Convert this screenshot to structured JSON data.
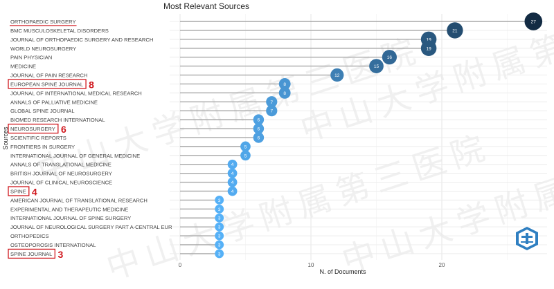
{
  "chart_data": {
    "type": "scatter",
    "subtype": "lollipop",
    "title": "Most Relevant Sources",
    "xlabel": "N. of Documents",
    "ylabel": "Sources",
    "xlim": [
      0,
      28
    ],
    "xticks": [
      0,
      10,
      20
    ],
    "grid": true,
    "color_low": "#56B1F7",
    "color_high": "#132B43",
    "categories": [
      "ORTHOPAEDIC SURGERY",
      "BMC MUSCULOSKELETAL DISORDERS",
      "JOURNAL OF ORTHOPAEDIC SURGERY AND RESEARCH",
      "WORLD NEUROSURGERY",
      "PAIN PHYSICIAN",
      "MEDICINE",
      "JOURNAL OF PAIN RESEARCH",
      "EUROPEAN SPINE JOURNAL",
      "JOURNAL OF INTERNATIONAL MEDICAL RESEARCH",
      "ANNALS OF PALLIATIVE MEDICINE",
      "GLOBAL SPINE JOURNAL",
      "BIOMED RESEARCH INTERNATIONAL",
      "NEUROSURGERY",
      "SCIENTIFIC REPORTS",
      "FRONTIERS IN SURGERY",
      "INTERNATIONAL JOURNAL OF GENERAL MEDICINE",
      "ANNALS OF TRANSLATIONAL MEDICINE",
      "BRITISH JOURNAL OF NEUROSURGERY",
      "JOURNAL OF CLINICAL NEUROSCIENCE",
      "SPINE",
      "AMERICAN JOURNAL OF TRANSLATIONAL RESEARCH",
      "EXPERIMENTAL AND THERAPEUTIC MEDICINE",
      "INTERNATIONAL JOURNAL OF SPINE SURGERY",
      "JOURNAL OF NEUROLOGICAL SURGERY PART A-CENTRAL EUR",
      "ORTHOPEDICS",
      "OSTEOPOROSIS INTERNATIONAL",
      "SPINE JOURNAL"
    ],
    "values": [
      27,
      21,
      19,
      19,
      16,
      15,
      12,
      8,
      8,
      7,
      7,
      6,
      6,
      6,
      5,
      5,
      4,
      4,
      4,
      4,
      3,
      3,
      3,
      3,
      3,
      3,
      3
    ],
    "annotations": [
      {
        "category_index": 0,
        "style": "underline",
        "text": ""
      },
      {
        "category_index": 7,
        "style": "box",
        "text": "8"
      },
      {
        "category_index": 12,
        "style": "box",
        "text": "6"
      },
      {
        "category_index": 19,
        "style": "box",
        "text": "4"
      },
      {
        "category_index": 26,
        "style": "box",
        "text": "3"
      }
    ],
    "annotation_color": "#D0181E"
  },
  "watermark": "中山大学附属第三医院"
}
